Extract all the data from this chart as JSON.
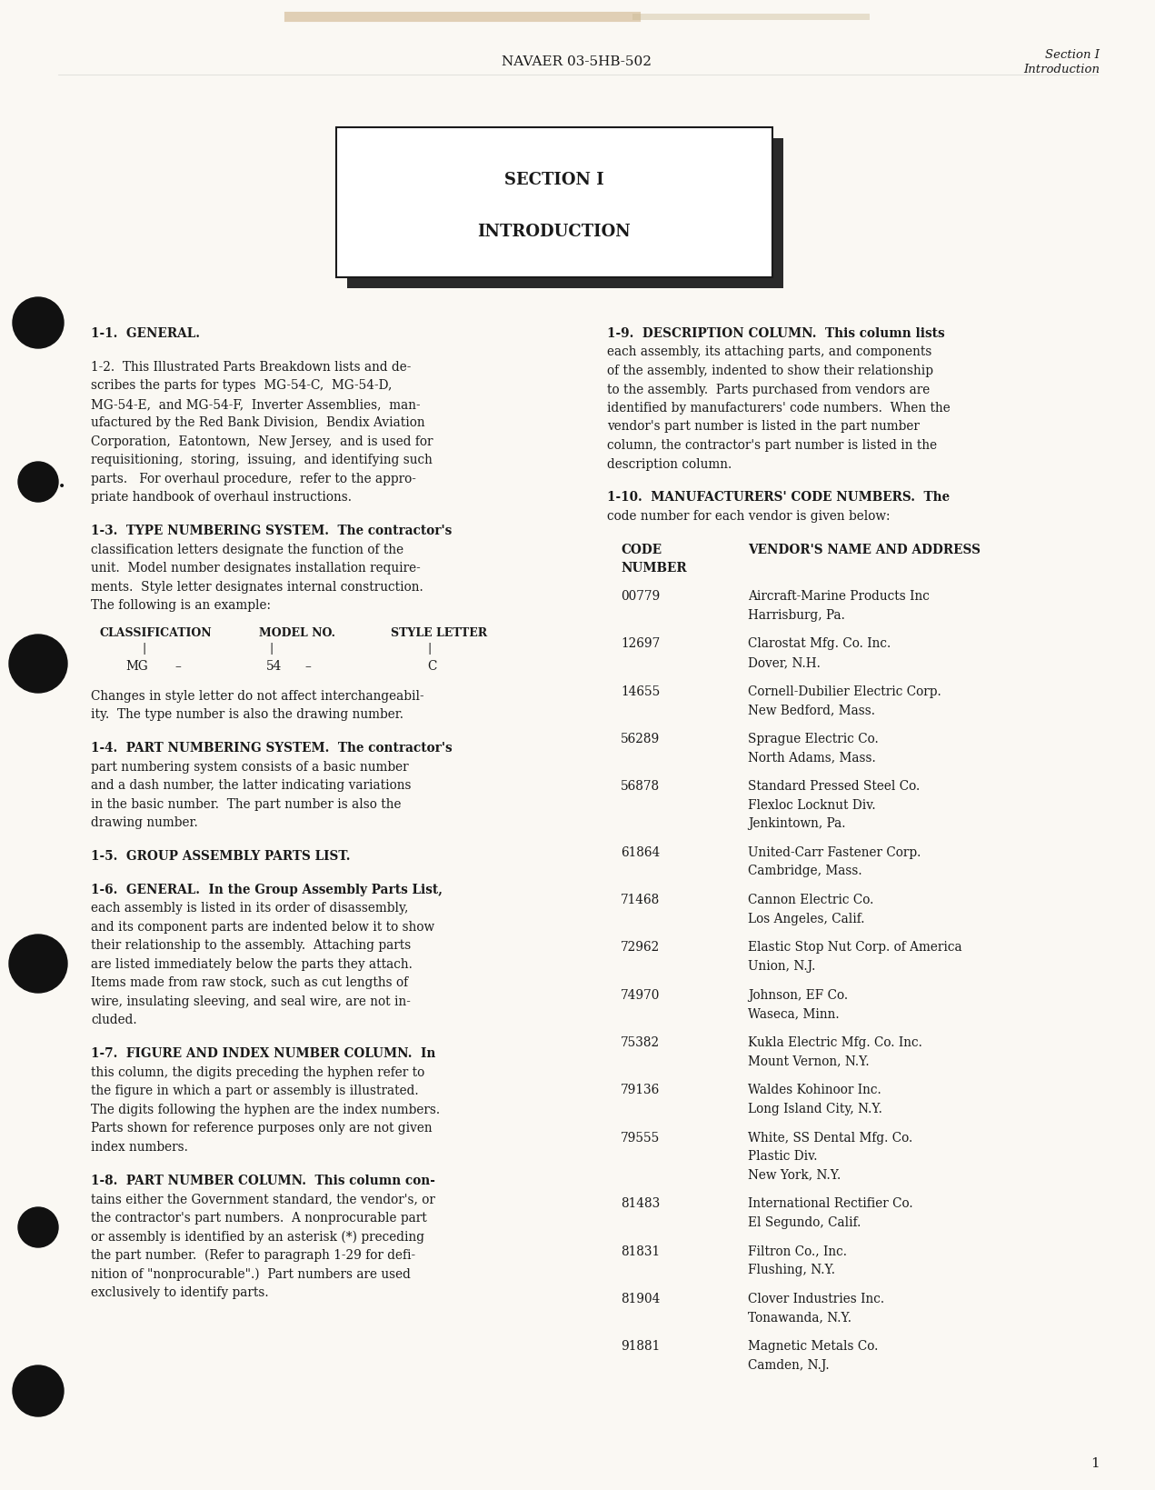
{
  "bg_color": "#f0ede4",
  "page_color": "#ffffff",
  "header_center": "NAVAER 03-5HB-502",
  "header_right_line1": "Section I",
  "header_right_line2": "Introduction",
  "section_box_line1": "SECTION I",
  "section_box_line2": "INTRODUCTION",
  "vendors": [
    [
      "00779",
      "Aircraft-Marine Products Inc\nHarrisburg, Pa."
    ],
    [
      "12697",
      "Clarostat Mfg. Co. Inc.\nDover, N.H."
    ],
    [
      "14655",
      "Cornell-Dubilier Electric Corp.\nNew Bedford, Mass."
    ],
    [
      "56289",
      "Sprague Electric Co.\nNorth Adams, Mass."
    ],
    [
      "56878",
      "Standard Pressed Steel Co.\nFlexloc Locknut Div.\nJenkintown, Pa."
    ],
    [
      "61864",
      "United-Carr Fastener Corp.\nCambridge, Mass."
    ],
    [
      "71468",
      "Cannon Electric Co.\nLos Angeles, Calif."
    ],
    [
      "72962",
      "Elastic Stop Nut Corp. of America\nUnion, N.J."
    ],
    [
      "74970",
      "Johnson, EF Co.\nWaseca, Minn."
    ],
    [
      "75382",
      "Kukla Electric Mfg. Co. Inc.\nMount Vernon, N.Y."
    ],
    [
      "79136",
      "Waldes Kohinoor Inc.\nLong Island City, N.Y."
    ],
    [
      "79555",
      "White, SS Dental Mfg. Co.\nPlastic Div.\nNew York, N.Y."
    ],
    [
      "81483",
      "International Rectifier Co.\nEl Segundo, Calif."
    ],
    [
      "81831",
      "Filtron Co., Inc.\nFlushing, N.Y."
    ],
    [
      "81904",
      "Clover Industries Inc.\nTonawanda, N.Y."
    ],
    [
      "91881",
      "Magnetic Metals Co.\nCamden, N.J."
    ]
  ],
  "page_number": "1"
}
